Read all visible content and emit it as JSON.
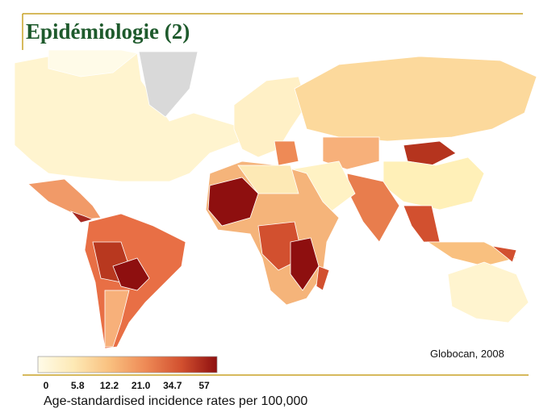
{
  "header": {
    "title": "Epidémiologie (2)"
  },
  "map": {
    "source": "Globocan, 2008",
    "legend": {
      "ticks": [
        0,
        5.8,
        12.2,
        {
          "value": 21,
          "label": "21.0"
        },
        34.7,
        57
      ],
      "colors": [
        "#fffbe8",
        "#fde9b5",
        "#f9c07f",
        "#ee8a56",
        "#d2502f",
        "#8e0f0f"
      ],
      "caption": "Age-standardised incidence rates per 100,000"
    }
  }
}
